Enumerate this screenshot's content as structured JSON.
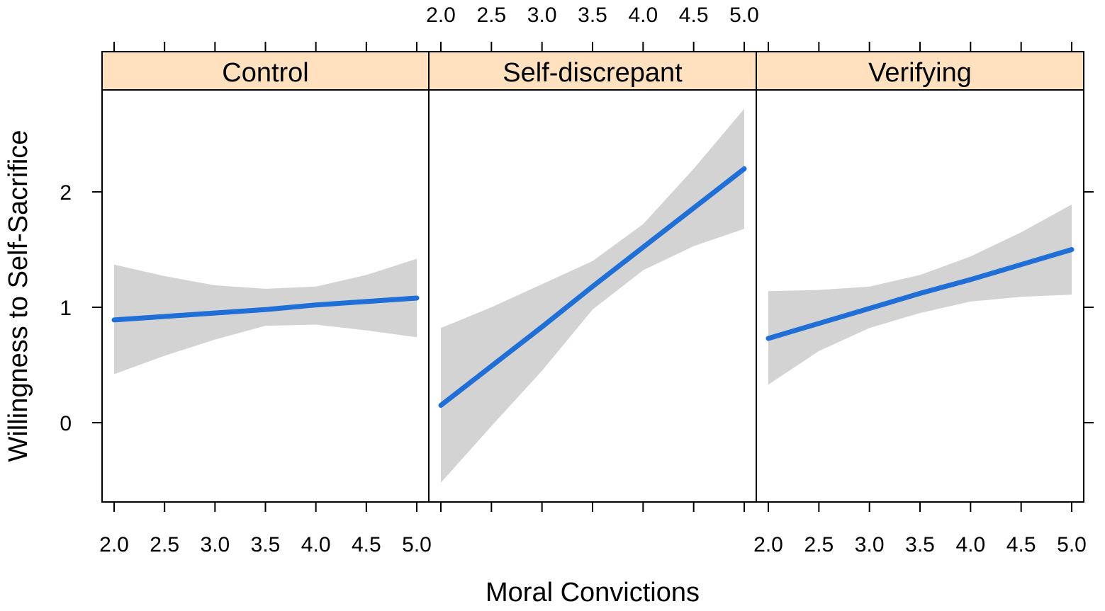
{
  "chart_data": {
    "type": "line",
    "layout": "faceted (3 panels, shared y-axis)",
    "xlabel": "Moral Convictions",
    "ylabel": "Willingness to Self-Sacrifice",
    "xlim": [
      1.9,
      5.1
    ],
    "ylim": [
      -0.68,
      2.9
    ],
    "xticks": [
      "2.0",
      "2.5",
      "3.0",
      "3.5",
      "4.0",
      "4.5",
      "5.0"
    ],
    "yticks": [
      "0",
      "1",
      "2"
    ],
    "line_color": "#1f6fd6",
    "band_color": "#d3d3d3",
    "strip_color": "#ffe0bf",
    "panels": [
      {
        "name": "Control",
        "x": [
          2.0,
          2.5,
          3.0,
          3.5,
          4.0,
          4.5,
          5.0
        ],
        "fit": [
          0.89,
          0.92,
          0.95,
          0.98,
          1.02,
          1.05,
          1.08
        ],
        "lower": [
          0.42,
          0.58,
          0.72,
          0.84,
          0.85,
          0.8,
          0.74
        ],
        "upper": [
          1.37,
          1.27,
          1.19,
          1.16,
          1.18,
          1.28,
          1.42
        ]
      },
      {
        "name": "Self-discrepant",
        "x": [
          2.0,
          2.5,
          3.0,
          3.5,
          4.0,
          4.5,
          5.0
        ],
        "fit": [
          0.15,
          0.49,
          0.83,
          1.18,
          1.52,
          1.86,
          2.2
        ],
        "lower": [
          -0.52,
          -0.03,
          0.45,
          0.98,
          1.32,
          1.53,
          1.68
        ],
        "upper": [
          0.82,
          1.0,
          1.2,
          1.4,
          1.72,
          2.2,
          2.72
        ]
      },
      {
        "name": "Verifying",
        "x": [
          2.0,
          2.5,
          3.0,
          3.5,
          4.0,
          4.5,
          5.0
        ],
        "fit": [
          0.73,
          0.86,
          0.99,
          1.12,
          1.24,
          1.37,
          1.5
        ],
        "lower": [
          0.33,
          0.62,
          0.82,
          0.95,
          1.05,
          1.09,
          1.11
        ],
        "upper": [
          1.14,
          1.15,
          1.18,
          1.28,
          1.44,
          1.65,
          1.89
        ]
      }
    ],
    "axis_sides": {
      "top_labels_panel": 1,
      "bottom_labels_panels": [
        0,
        2
      ],
      "left_labels": true,
      "right_ticks": true
    }
  }
}
